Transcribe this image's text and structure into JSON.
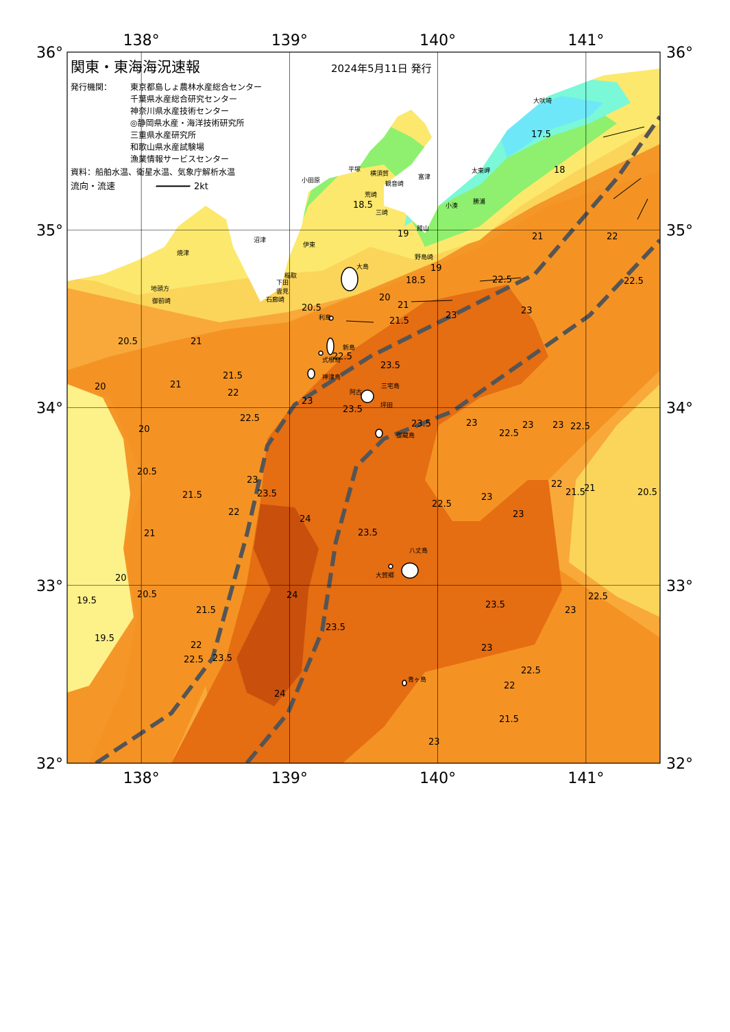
{
  "header": {
    "title": "関東・東海海況速報",
    "date": "2024年5月11日 発行",
    "issuer_label": "発行機関：",
    "issuers": [
      "東京都島しょ農林水産総合センター",
      "千葉県水産総合研究センター",
      "神奈川県水産技術センター",
      "◎静岡県水産・海洋技術研究所",
      "三重県水産研究所",
      "和歌山県水産試験場",
      "漁業情報サービスセンター"
    ],
    "source": "資料：船舶水温、衛星水温、気象庁解析水温",
    "legend_label": "流向・流速",
    "legend_scale": "2kt"
  },
  "map": {
    "xlim": [
      137.5,
      141.5
    ],
    "ylim": [
      32,
      36
    ],
    "xticks": [
      {
        "value": 138,
        "label": "138°"
      },
      {
        "value": 139,
        "label": "139°"
      },
      {
        "value": 140,
        "label": "140°"
      },
      {
        "value": 141,
        "label": "141°"
      }
    ],
    "yticks": [
      {
        "value": 32,
        "label": "32°"
      },
      {
        "value": 33,
        "label": "33°"
      },
      {
        "value": 34,
        "label": "34°"
      },
      {
        "value": 35,
        "label": "35°"
      },
      {
        "value": 36,
        "label": "36°"
      }
    ]
  },
  "places": [
    "大吠埼",
    "太東岬",
    "勝浦",
    "小湊",
    "館山",
    "野島崎",
    "富津",
    "観音崎",
    "横須賀",
    "荒崎",
    "三崎",
    "平塚",
    "小田原",
    "伊東",
    "稲取",
    "下田",
    "雲見",
    "石廊崎",
    "沼津",
    "焼津",
    "地頭方",
    "御前崎",
    "大島",
    "利島",
    "新島",
    "式根島",
    "神津島",
    "阿古",
    "三宅島",
    "坪田",
    "御蔵島",
    "八丈島",
    "大賀郷",
    "青ヶ島"
  ],
  "isotherm_labels": [
    17.5,
    18,
    18.5,
    18.5,
    19,
    19,
    19.5,
    19.5,
    20,
    20,
    20,
    20,
    20.5,
    20.5,
    20.5,
    20.5,
    20.5,
    21,
    21,
    21,
    21,
    21,
    21,
    21.5,
    21.5,
    21.5,
    21.5,
    21.5,
    21.5,
    22,
    22,
    22,
    22,
    22,
    22,
    22.5,
    22.5,
    22.5,
    22.5,
    22.5,
    22.5,
    22.5,
    22.5,
    22.5,
    22.5,
    23,
    23,
    23,
    23,
    23,
    23,
    23,
    23,
    23,
    23,
    23,
    23,
    23.5,
    23.5,
    23.5,
    23.5,
    23.5,
    23.5,
    23.5,
    23.5,
    24,
    24,
    24
  ]
}
